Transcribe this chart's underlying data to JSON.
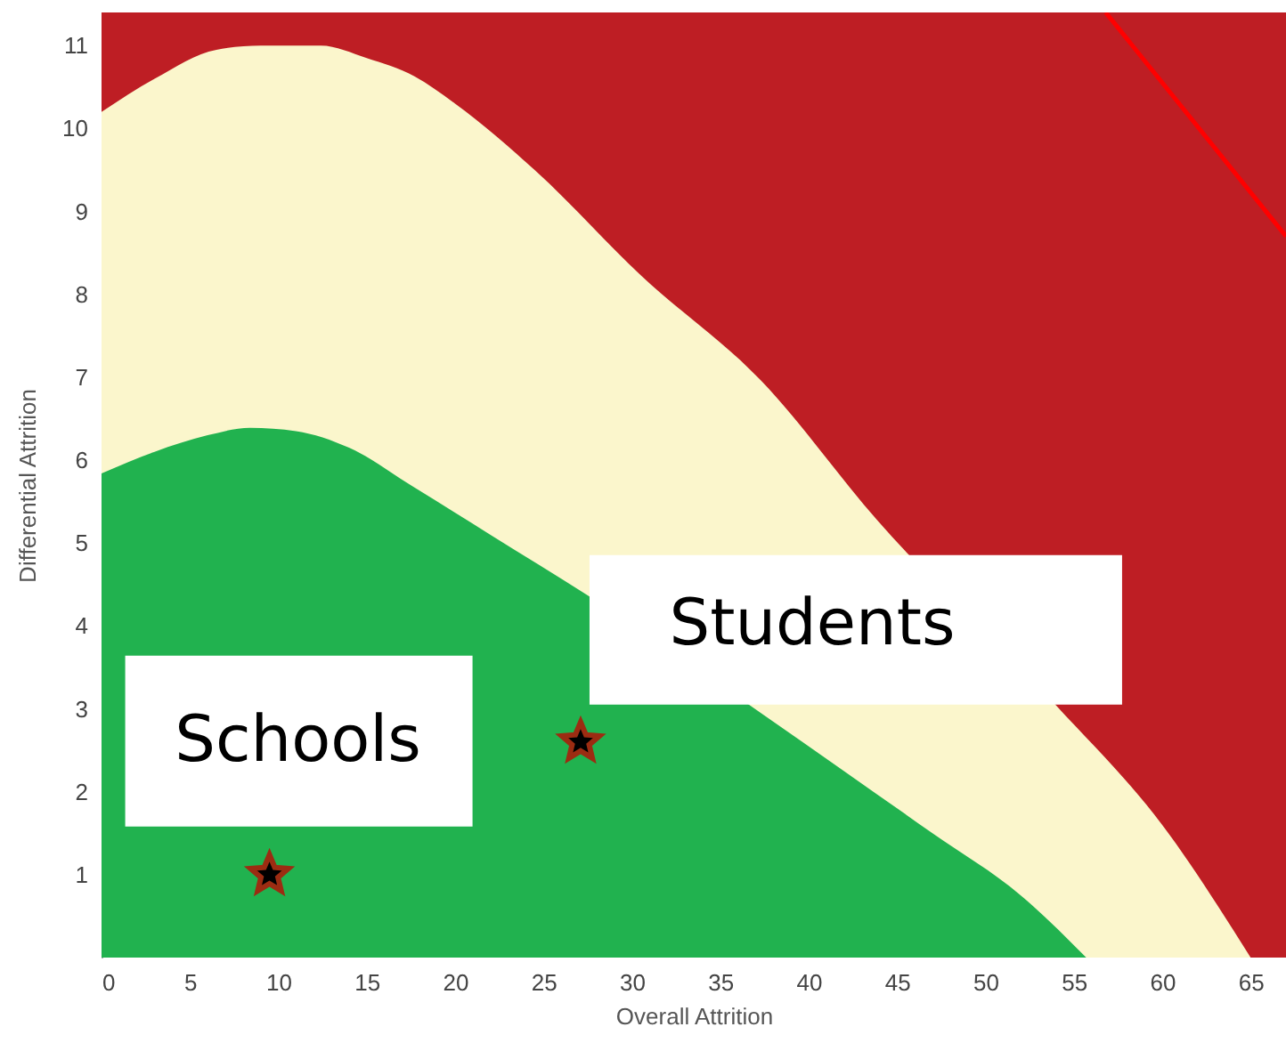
{
  "chart_data": {
    "type": "area",
    "xlabel": "Overall Attrition",
    "ylabel": "Differential Attrition",
    "xlim": [
      0,
      67
    ],
    "ylim": [
      0,
      11.4
    ],
    "xticks": [
      0,
      5,
      10,
      15,
      20,
      25,
      30,
      35,
      40,
      45,
      50,
      55,
      60,
      65
    ],
    "yticks": [
      1,
      2,
      3,
      4,
      5,
      6,
      7,
      8,
      9,
      10,
      11
    ],
    "bands": [
      {
        "axis": "y",
        "from": 0,
        "to": 11.4,
        "color": "#be1e24"
      }
    ],
    "series": [
      {
        "color": "#fbf6cc",
        "x": [
          0,
          3,
          6.5,
          9,
          12.4,
          15,
          17.7,
          20,
          24.5,
          30.5,
          37.3,
          43.9,
          54,
          60,
          65
        ],
        "values": [
          10.2,
          10.6,
          10.95,
          11.0,
          11.0,
          10.85,
          10.63,
          10.3,
          9.5,
          8.23,
          6.96,
          5.27,
          3.04,
          1.6,
          0
        ]
      },
      {
        "color": "#21b24f",
        "x": [
          0,
          3,
          6,
          8.4,
          11,
          14,
          17.7,
          22,
          27.5,
          37.3,
          42,
          47,
          52,
          55.7
        ],
        "values": [
          5.84,
          6.1,
          6.3,
          6.39,
          6.35,
          6.15,
          5.67,
          5.1,
          4.37,
          2.95,
          2.25,
          1.5,
          0.75,
          0
        ]
      },
      {
        "type": "line",
        "color": "#ff0000",
        "x": [
          56.8,
          67
        ],
        "values": [
          11.4,
          8.7
        ]
      },
      {
        "type": "scatter",
        "color": "#000000",
        "marker": "star",
        "x": [
          9.5,
          27.1
        ],
        "values": [
          1.0,
          2.6
        ]
      }
    ],
    "annotations": [
      {
        "text": "Schools",
        "x": 9.5,
        "y": 1.0
      },
      {
        "text": "Students",
        "x": 27.1,
        "y": 2.6
      }
    ]
  }
}
